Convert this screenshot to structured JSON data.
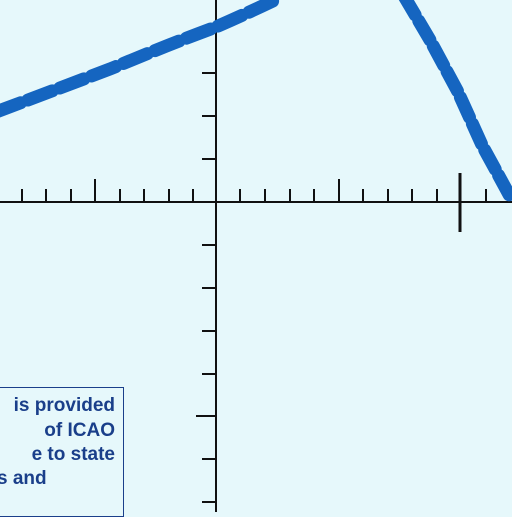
{
  "colors": {
    "background": "#e6f8fb",
    "axis": "#111111",
    "curve": "#1565c0",
    "note_text": "#1a3f8a"
  },
  "note": {
    "lines": [
      "is provided",
      "of ICAO",
      "e to state",
      "s and"
    ]
  }
}
